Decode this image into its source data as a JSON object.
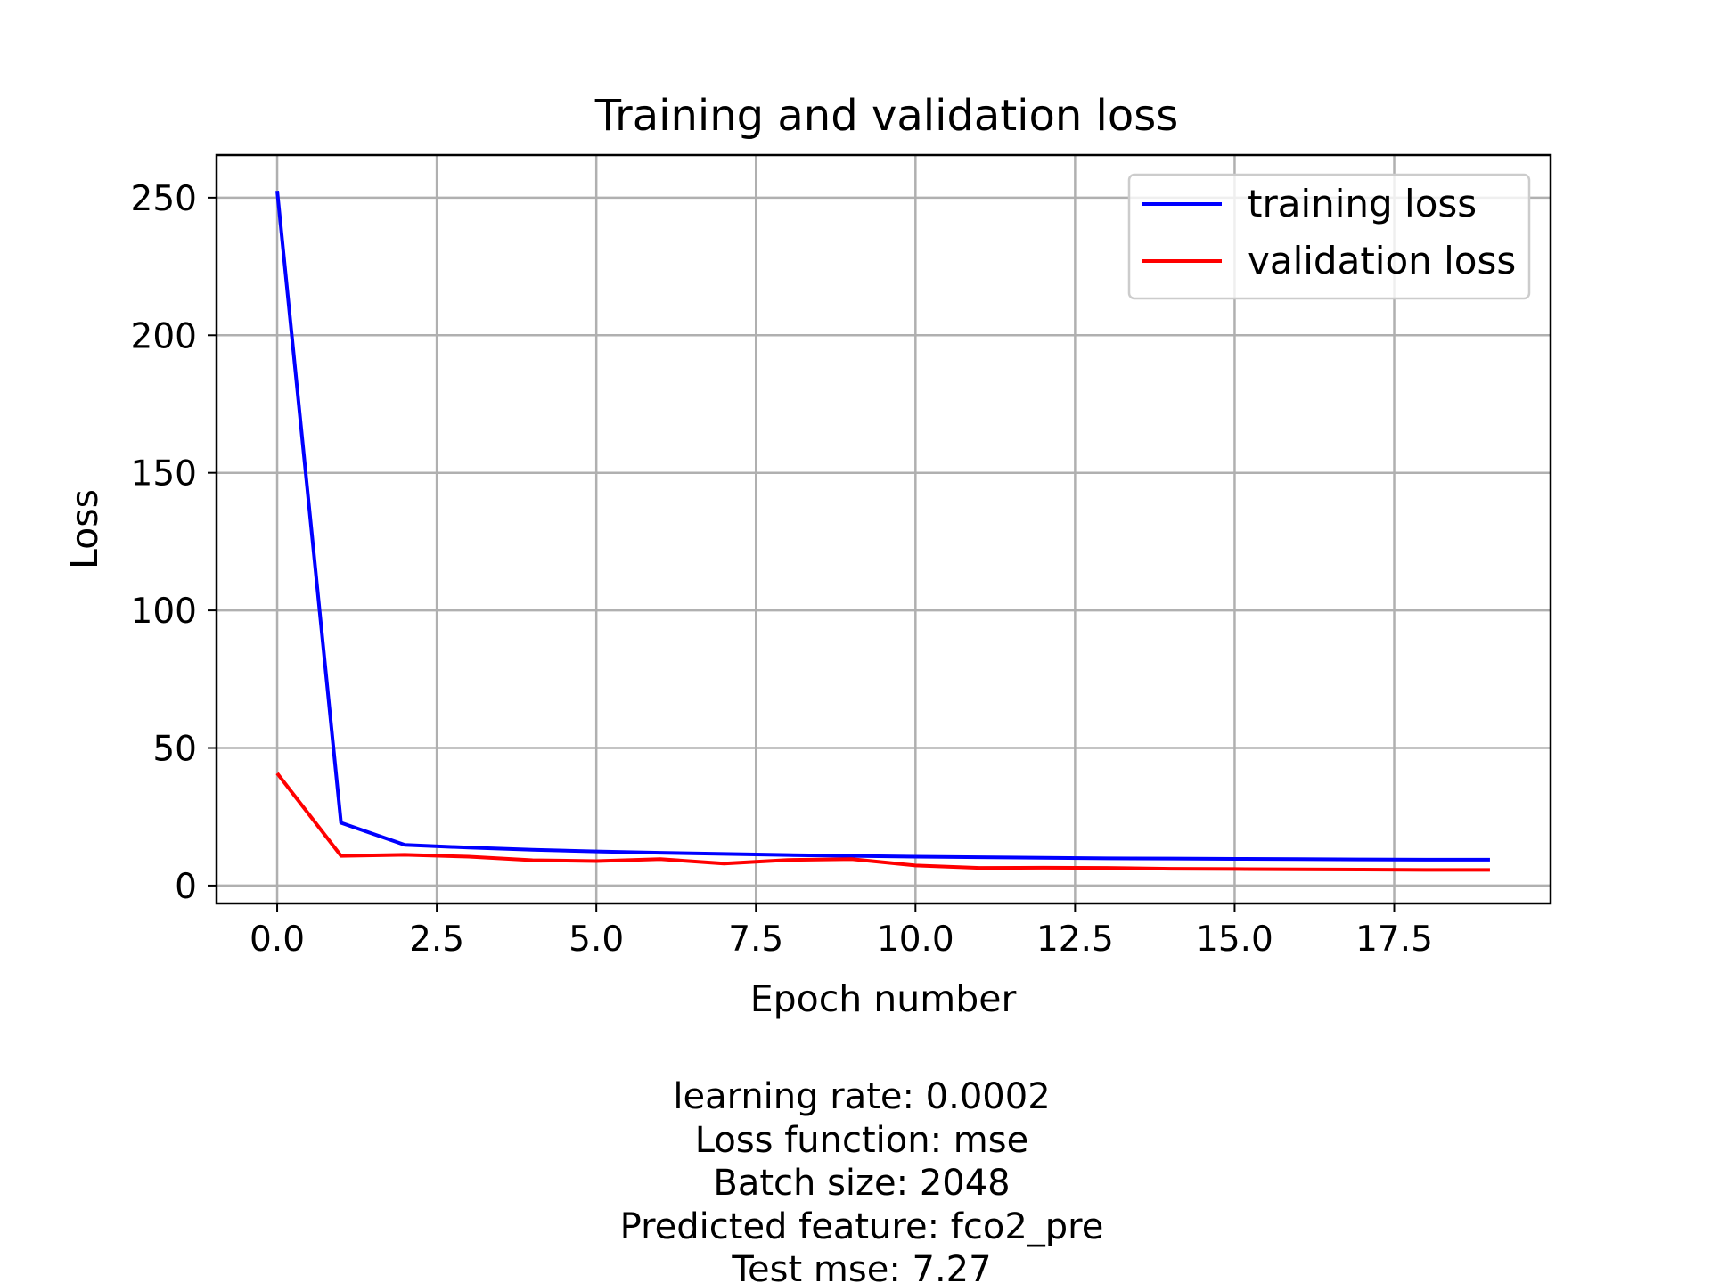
{
  "chart_data": {
    "type": "line",
    "title": "Training and validation loss",
    "xlabel": "Epoch number",
    "ylabel": "Loss",
    "xlim": [
      -0.95,
      19.95
    ],
    "ylim": [
      -6.5,
      265.5
    ],
    "x_ticks": [
      0,
      2.5,
      5,
      7.5,
      10,
      12.5,
      15,
      17.5
    ],
    "x_tick_labels": [
      "0.0",
      "2.5",
      "5.0",
      "7.5",
      "10.0",
      "12.5",
      "15.0",
      "17.5"
    ],
    "y_ticks": [
      0,
      50,
      100,
      150,
      200,
      250
    ],
    "y_tick_labels": [
      "0",
      "50",
      "100",
      "150",
      "200",
      "250"
    ],
    "grid": true,
    "legend_position": "top-right",
    "x": [
      0,
      1,
      2,
      3,
      4,
      5,
      6,
      7,
      8,
      9,
      10,
      11,
      12,
      13,
      14,
      15,
      16,
      17,
      18,
      19
    ],
    "series": [
      {
        "name": "training loss",
        "color": "#0000ff",
        "values": [
          252.5,
          22.8,
          14.8,
          13.8,
          13.0,
          12.4,
          11.9,
          11.5,
          11.1,
          10.8,
          10.5,
          10.3,
          10.1,
          9.9,
          9.8,
          9.7,
          9.6,
          9.5,
          9.4,
          9.4
        ]
      },
      {
        "name": "validation loss",
        "color": "#ff0000",
        "values": [
          40.8,
          10.8,
          11.2,
          10.5,
          9.2,
          8.9,
          9.6,
          8.0,
          9.3,
          9.6,
          7.3,
          6.4,
          6.5,
          6.4,
          6.1,
          6.0,
          5.9,
          5.8,
          5.7,
          5.7
        ]
      }
    ],
    "caption_lines": [
      "learning rate: 0.0002",
      "Loss function: mse",
      "Batch size: 2048",
      "Predicted feature: fco2_pre",
      "Test mse: 7.27"
    ]
  }
}
